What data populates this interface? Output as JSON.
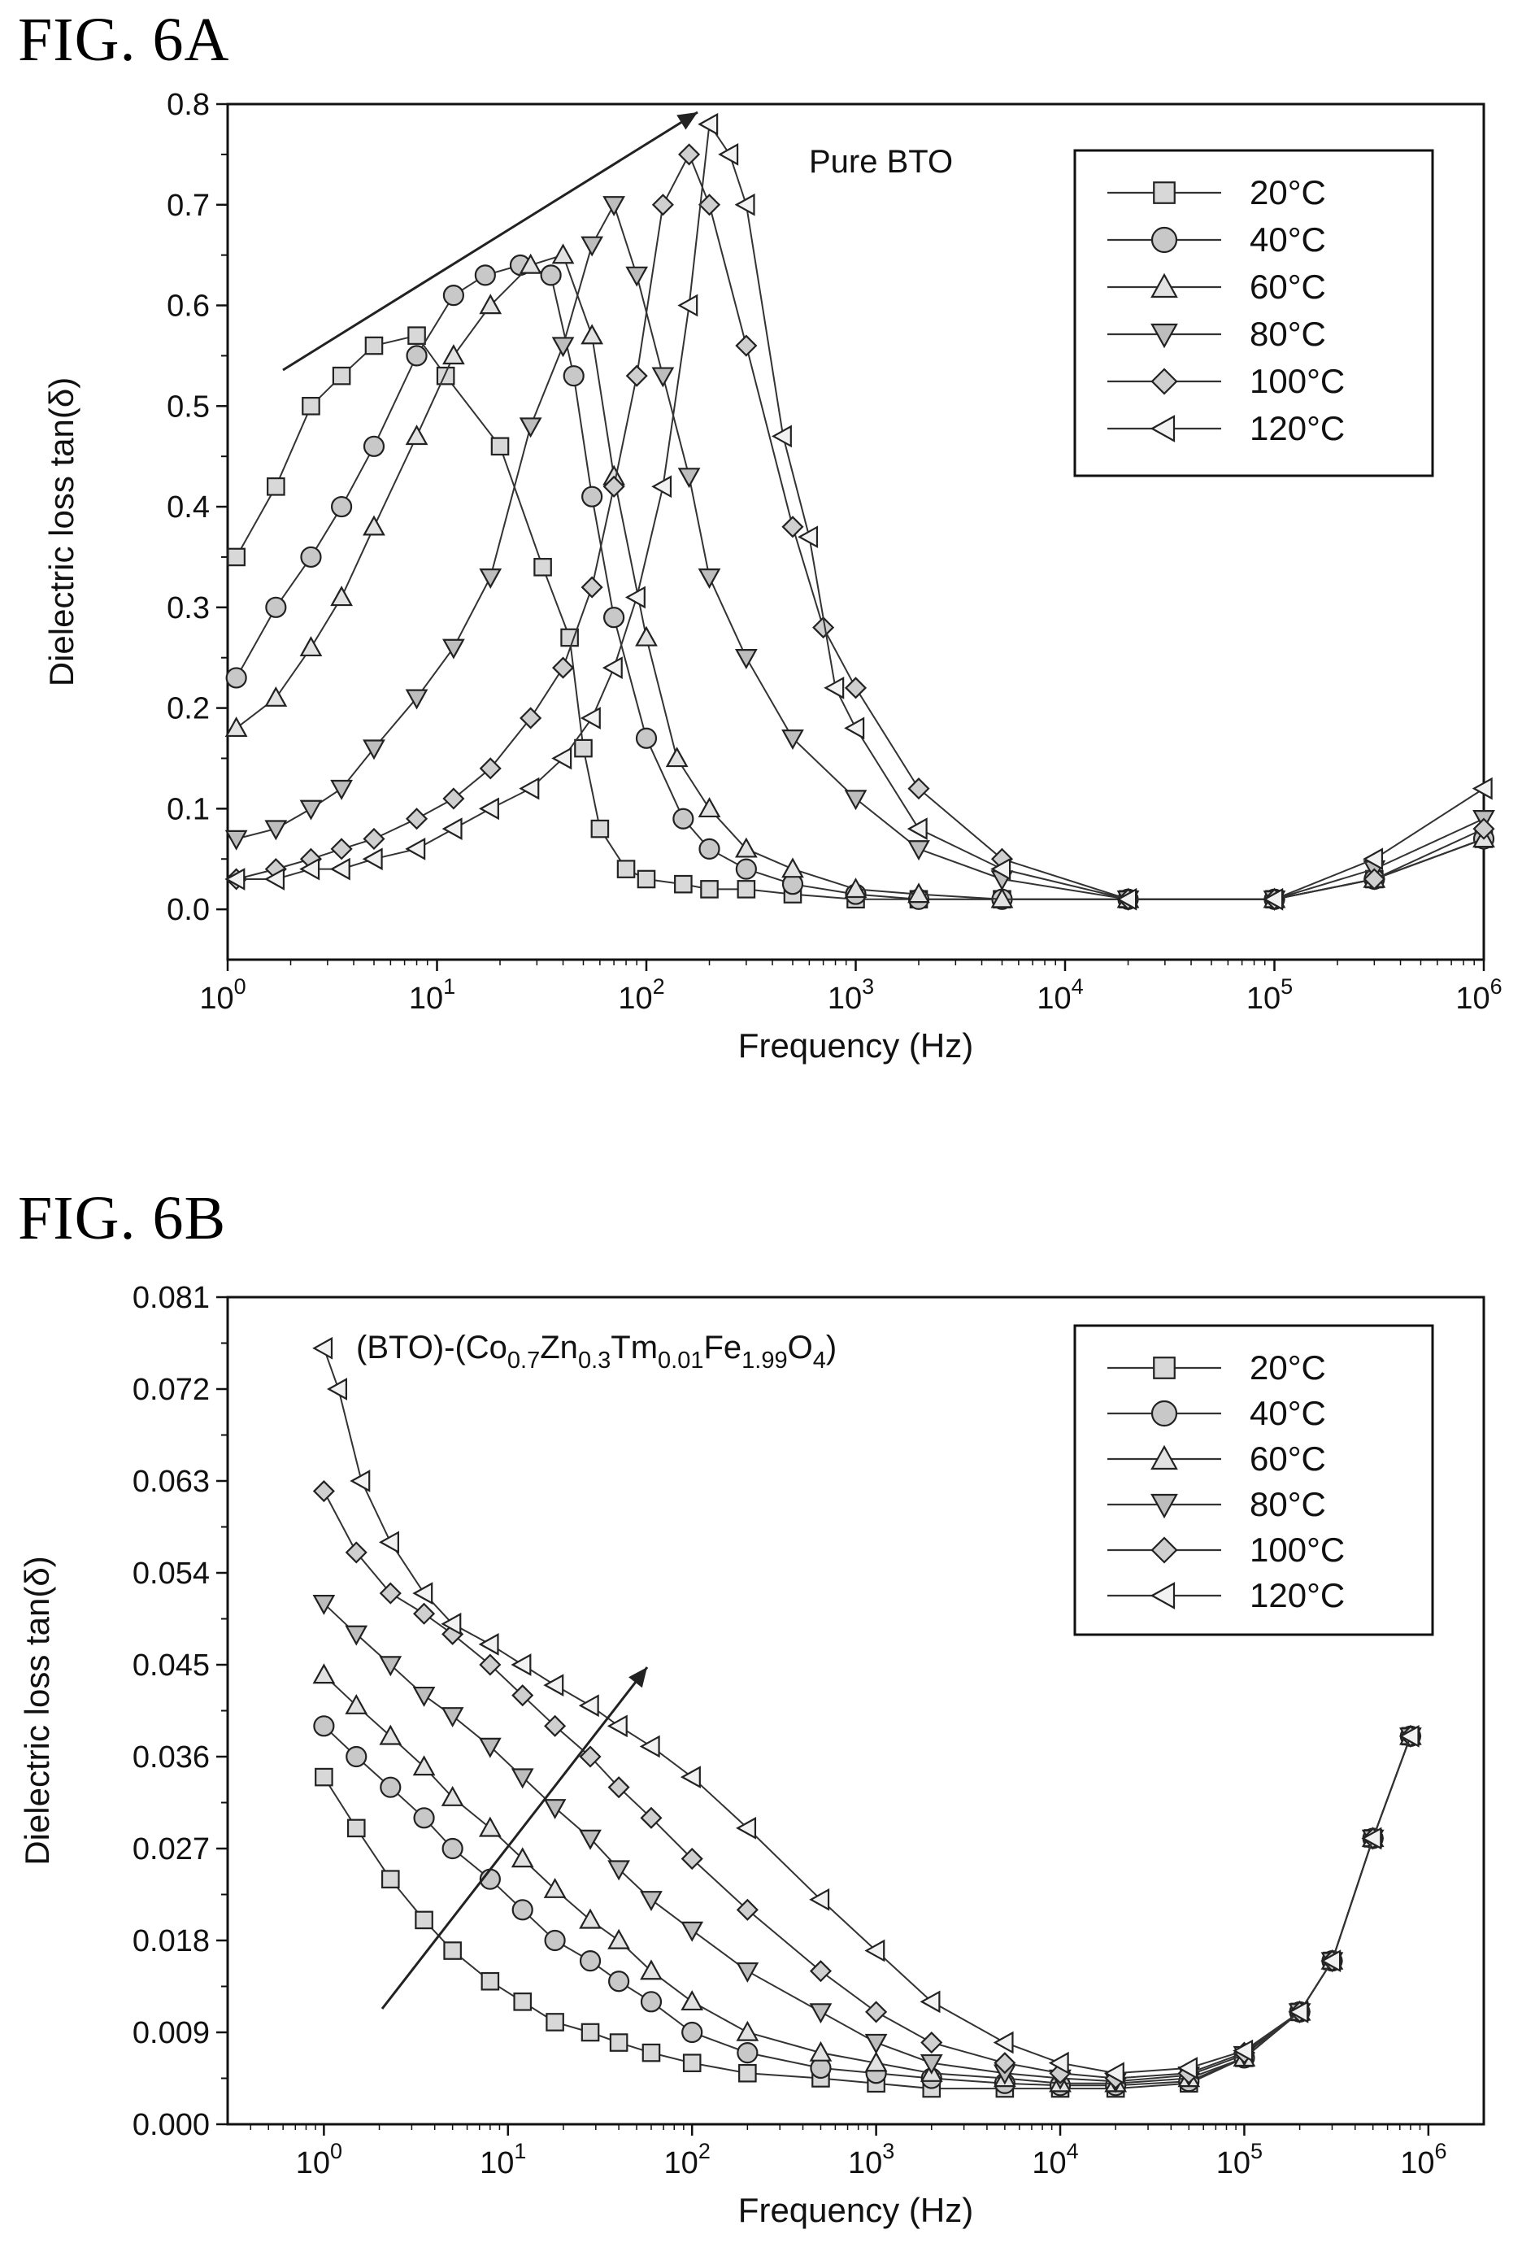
{
  "figures": [
    {
      "label": "FIG. 6A"
    },
    {
      "label": "FIG. 6B"
    }
  ],
  "chart_data": [
    {
      "type": "line",
      "annotation": "Pure BTO",
      "xlabel": "Frequency (Hz)",
      "ylabel": "Dielectric loss tan(δ)",
      "xscale": "log",
      "xlim": [
        1,
        1000000
      ],
      "ylim": [
        -0.05,
        0.8
      ],
      "x_ticks": [
        1,
        10,
        100,
        1000,
        10000,
        100000,
        1000000
      ],
      "y_ticks": [
        "0.0",
        "0.1",
        "0.2",
        "0.3",
        "0.4",
        "0.5",
        "0.6",
        "0.7",
        "0.8"
      ],
      "legend_position": "top-right",
      "trend_arrow": "increasing temperature shifts peak to higher frequency",
      "series": [
        {
          "name": "20°C",
          "marker": "square",
          "x": [
            1.1,
            1.7,
            2.5,
            3.5,
            5,
            8,
            11,
            20,
            32,
            43,
            50,
            60,
            80,
            100,
            150,
            200,
            300,
            500,
            1000,
            2000,
            5000,
            20000,
            100000,
            300000,
            1000000
          ],
          "y": [
            0.35,
            0.42,
            0.5,
            0.53,
            0.56,
            0.57,
            0.53,
            0.46,
            0.34,
            0.27,
            0.16,
            0.08,
            0.04,
            0.03,
            0.025,
            0.02,
            0.02,
            0.015,
            0.01,
            0.01,
            0.01,
            0.01,
            0.01,
            0.03,
            0.07
          ]
        },
        {
          "name": "40°C",
          "marker": "circle",
          "x": [
            1.1,
            1.7,
            2.5,
            3.5,
            5,
            8,
            12,
            17,
            25,
            35,
            45,
            55,
            70,
            100,
            150,
            200,
            300,
            500,
            1000,
            2000,
            5000,
            20000,
            100000,
            300000,
            1000000
          ],
          "y": [
            0.23,
            0.3,
            0.35,
            0.4,
            0.46,
            0.55,
            0.61,
            0.63,
            0.64,
            0.63,
            0.53,
            0.41,
            0.29,
            0.17,
            0.09,
            0.06,
            0.04,
            0.025,
            0.015,
            0.01,
            0.01,
            0.01,
            0.01,
            0.03,
            0.07
          ]
        },
        {
          "name": "60°C",
          "marker": "triangle-up",
          "x": [
            1.1,
            1.7,
            2.5,
            3.5,
            5,
            8,
            12,
            18,
            28,
            40,
            55,
            70,
            100,
            140,
            200,
            300,
            500,
            1000,
            2000,
            5000,
            20000,
            100000,
            300000,
            1000000
          ],
          "y": [
            0.18,
            0.21,
            0.26,
            0.31,
            0.38,
            0.47,
            0.55,
            0.6,
            0.64,
            0.65,
            0.57,
            0.43,
            0.27,
            0.15,
            0.1,
            0.06,
            0.04,
            0.02,
            0.015,
            0.01,
            0.01,
            0.01,
            0.03,
            0.07
          ]
        },
        {
          "name": "80°C",
          "marker": "triangle-down",
          "x": [
            1.1,
            1.7,
            2.5,
            3.5,
            5,
            8,
            12,
            18,
            28,
            40,
            55,
            70,
            90,
            120,
            160,
            200,
            300,
            500,
            1000,
            2000,
            5000,
            20000,
            100000,
            300000,
            1000000
          ],
          "y": [
            0.07,
            0.08,
            0.1,
            0.12,
            0.16,
            0.21,
            0.26,
            0.33,
            0.48,
            0.56,
            0.66,
            0.7,
            0.63,
            0.53,
            0.43,
            0.33,
            0.25,
            0.17,
            0.11,
            0.06,
            0.03,
            0.01,
            0.01,
            0.04,
            0.09
          ]
        },
        {
          "name": "100°C",
          "marker": "diamond",
          "x": [
            1.1,
            1.7,
            2.5,
            3.5,
            5,
            8,
            12,
            18,
            28,
            40,
            55,
            70,
            90,
            120,
            160,
            200,
            300,
            500,
            700,
            1000,
            2000,
            5000,
            20000,
            100000,
            300000,
            1000000
          ],
          "y": [
            0.03,
            0.04,
            0.05,
            0.06,
            0.07,
            0.09,
            0.11,
            0.14,
            0.19,
            0.24,
            0.32,
            0.42,
            0.53,
            0.7,
            0.75,
            0.7,
            0.56,
            0.38,
            0.28,
            0.22,
            0.12,
            0.05,
            0.01,
            0.01,
            0.03,
            0.08
          ]
        },
        {
          "name": "120°C",
          "marker": "triangle-left",
          "x": [
            1.1,
            1.7,
            2.5,
            3.5,
            5,
            8,
            12,
            18,
            28,
            40,
            55,
            70,
            90,
            120,
            160,
            200,
            250,
            300,
            450,
            600,
            800,
            1000,
            2000,
            5000,
            20000,
            100000,
            300000,
            1000000
          ],
          "y": [
            0.03,
            0.03,
            0.04,
            0.04,
            0.05,
            0.06,
            0.08,
            0.1,
            0.12,
            0.15,
            0.19,
            0.24,
            0.31,
            0.42,
            0.6,
            0.78,
            0.75,
            0.7,
            0.47,
            0.37,
            0.22,
            0.18,
            0.08,
            0.04,
            0.01,
            0.01,
            0.05,
            0.12
          ]
        }
      ]
    },
    {
      "type": "line",
      "annotation_main": "(BTO)-(Co",
      "annotation_parts": [
        "0.7",
        "Zn",
        "0.3",
        "Tm",
        "0.01",
        "Fe",
        "1.99",
        "O",
        "4",
        ")"
      ],
      "xlabel": "Frequency (Hz)",
      "ylabel": "Dielectric loss tan(δ)",
      "xscale": "log",
      "xlim": [
        0.3,
        2000000
      ],
      "ylim": [
        0,
        0.081
      ],
      "x_ticks": [
        1,
        10,
        100,
        1000,
        10000,
        100000,
        1000000
      ],
      "y_ticks": [
        "0.000",
        "0.009",
        "0.018",
        "0.027",
        "0.036",
        "0.045",
        "0.054",
        "0.063",
        "0.072",
        "0.081"
      ],
      "legend_position": "top-right",
      "trend_arrow": "increasing temperature raises loss",
      "series": [
        {
          "name": "20°C",
          "marker": "square",
          "x": [
            1,
            1.5,
            2.3,
            3.5,
            5,
            8,
            12,
            18,
            28,
            40,
            60,
            100,
            200,
            500,
            1000,
            2000,
            5000,
            10000,
            20000,
            50000,
            100000,
            200000,
            300000,
            500000,
            800000
          ],
          "y": [
            0.034,
            0.029,
            0.024,
            0.02,
            0.017,
            0.014,
            0.012,
            0.01,
            0.009,
            0.008,
            0.007,
            0.006,
            0.005,
            0.0045,
            0.004,
            0.0035,
            0.0035,
            0.0035,
            0.0035,
            0.004,
            0.0065,
            0.011,
            0.016,
            0.028,
            0.038
          ]
        },
        {
          "name": "40°C",
          "marker": "circle",
          "x": [
            1,
            1.5,
            2.3,
            3.5,
            5,
            8,
            12,
            18,
            28,
            40,
            60,
            100,
            200,
            500,
            1000,
            2000,
            5000,
            10000,
            20000,
            50000,
            100000,
            200000,
            300000,
            500000,
            800000
          ],
          "y": [
            0.039,
            0.036,
            0.033,
            0.03,
            0.027,
            0.024,
            0.021,
            0.018,
            0.016,
            0.014,
            0.012,
            0.009,
            0.007,
            0.0055,
            0.005,
            0.0045,
            0.004,
            0.0038,
            0.0038,
            0.0042,
            0.0065,
            0.011,
            0.016,
            0.028,
            0.038
          ]
        },
        {
          "name": "60°C",
          "marker": "triangle-up",
          "x": [
            1,
            1.5,
            2.3,
            3.5,
            5,
            8,
            12,
            18,
            28,
            40,
            60,
            100,
            200,
            500,
            1000,
            2000,
            5000,
            10000,
            20000,
            50000,
            100000,
            200000,
            300000,
            500000,
            800000
          ],
          "y": [
            0.044,
            0.041,
            0.038,
            0.035,
            0.032,
            0.029,
            0.026,
            0.023,
            0.02,
            0.018,
            0.015,
            0.012,
            0.009,
            0.007,
            0.006,
            0.005,
            0.0045,
            0.004,
            0.004,
            0.0045,
            0.0065,
            0.011,
            0.016,
            0.028,
            0.038
          ]
        },
        {
          "name": "80°C",
          "marker": "triangle-down",
          "x": [
            1,
            1.5,
            2.3,
            3.5,
            5,
            8,
            12,
            18,
            28,
            40,
            60,
            100,
            200,
            500,
            1000,
            2000,
            5000,
            10000,
            20000,
            50000,
            100000,
            200000,
            300000,
            500000,
            800000
          ],
          "y": [
            0.051,
            0.048,
            0.045,
            0.042,
            0.04,
            0.037,
            0.034,
            0.031,
            0.028,
            0.025,
            0.022,
            0.019,
            0.015,
            0.011,
            0.008,
            0.006,
            0.005,
            0.0045,
            0.0042,
            0.0048,
            0.0068,
            0.011,
            0.016,
            0.028,
            0.038
          ]
        },
        {
          "name": "100°C",
          "marker": "diamond",
          "x": [
            1,
            1.5,
            2.3,
            3.5,
            5,
            8,
            12,
            18,
            28,
            40,
            60,
            100,
            200,
            500,
            1000,
            2000,
            5000,
            10000,
            20000,
            50000,
            100000,
            200000,
            300000,
            500000,
            800000
          ],
          "y": [
            0.062,
            0.056,
            0.052,
            0.05,
            0.048,
            0.045,
            0.042,
            0.039,
            0.036,
            0.033,
            0.03,
            0.026,
            0.021,
            0.015,
            0.011,
            0.008,
            0.006,
            0.005,
            0.0045,
            0.005,
            0.007,
            0.011,
            0.016,
            0.028,
            0.038
          ]
        },
        {
          "name": "120°C",
          "marker": "triangle-left",
          "x": [
            1,
            1.2,
            1.6,
            2.3,
            3.5,
            5,
            8,
            12,
            18,
            28,
            40,
            60,
            100,
            200,
            500,
            1000,
            2000,
            5000,
            10000,
            20000,
            50000,
            100000,
            200000,
            300000,
            500000,
            800000
          ],
          "y": [
            0.076,
            0.072,
            0.063,
            0.057,
            0.052,
            0.049,
            0.047,
            0.045,
            0.043,
            0.041,
            0.039,
            0.037,
            0.034,
            0.029,
            0.022,
            0.017,
            0.012,
            0.008,
            0.006,
            0.005,
            0.0055,
            0.0072,
            0.011,
            0.016,
            0.028,
            0.038
          ]
        }
      ]
    }
  ]
}
